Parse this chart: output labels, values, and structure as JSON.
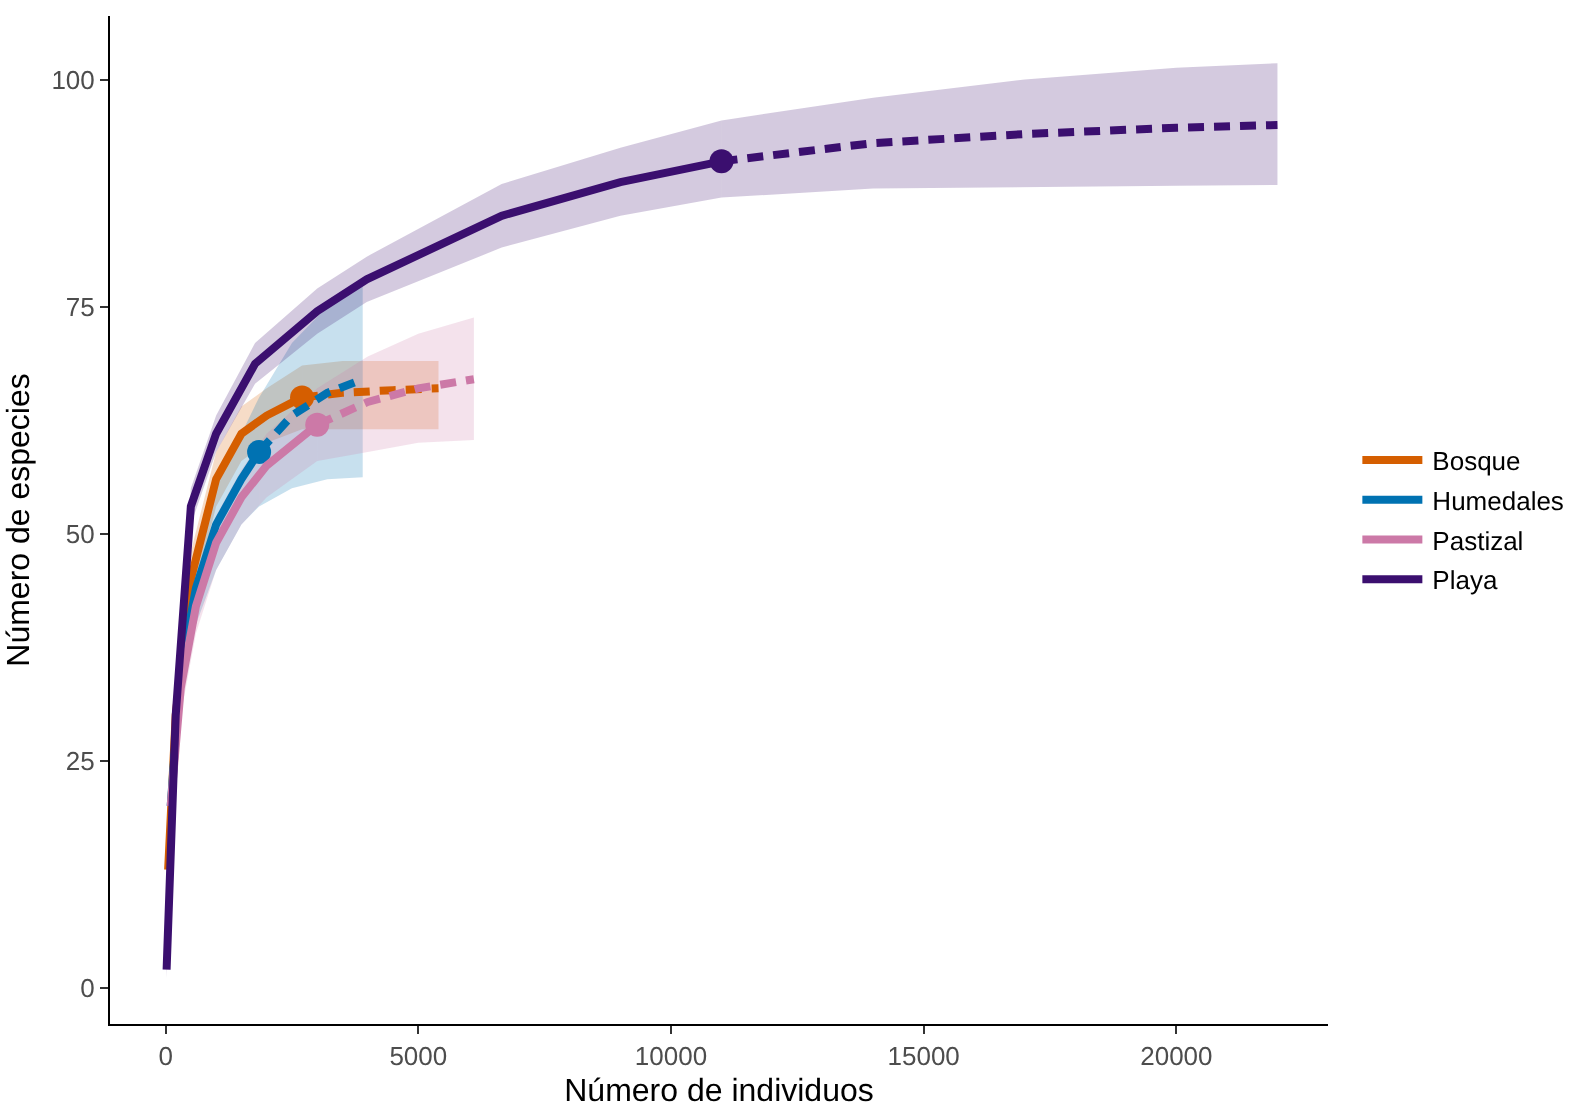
{
  "chart_data": {
    "type": "line",
    "xlabel": "Número de individuos",
    "ylabel": "Número de especies",
    "xlim": [
      -1100,
      23000
    ],
    "ylim": [
      -4,
      107
    ],
    "xticks": [
      0,
      5000,
      10000,
      15000,
      20000
    ],
    "yticks": [
      0,
      25,
      50,
      75,
      100
    ],
    "grid": false,
    "legend": "right",
    "marker": "none",
    "series": [
      {
        "name": "Bosque",
        "color": "#d55e00",
        "line_style": "solid",
        "x": [
          50,
          200,
          500,
          1000,
          1500,
          2000,
          2700
        ],
        "values": [
          13,
          30,
          45,
          56,
          61,
          63,
          65
        ],
        "lower": [
          11,
          27,
          42,
          53,
          58,
          60,
          61.5
        ],
        "upper": [
          15,
          33,
          48,
          59,
          64,
          66,
          68.5
        ]
      },
      {
        "color": "#d55e00",
        "line_style": "dashed",
        "x": [
          2700,
          3500,
          4500,
          5400
        ],
        "values": [
          65,
          65.5,
          65.8,
          66
        ],
        "lower": [
          61.5,
          61.5,
          61.5,
          61.5
        ],
        "upper": [
          68.5,
          69,
          69,
          69
        ]
      },
      {
        "type": "scatter",
        "color": "#d55e00",
        "marker": "circle",
        "x": [
          2700
        ],
        "values": [
          65
        ]
      },
      {
        "name": "Humedales",
        "color": "#0072b2",
        "line_style": "solid",
        "x": [
          100,
          300,
          600,
          1000,
          1500,
          1850
        ],
        "values": [
          20,
          35,
          44,
          51,
          56,
          59
        ],
        "lower": [
          17,
          31,
          40,
          46,
          51,
          53
        ],
        "upper": [
          23,
          39,
          48,
          56,
          61,
          65
        ]
      },
      {
        "color": "#0072b2",
        "line_style": "dashed",
        "x": [
          1850,
          2500,
          3200,
          3900
        ],
        "values": [
          59,
          63,
          65.5,
          67
        ],
        "lower": [
          53,
          55,
          56,
          56.2
        ],
        "upper": [
          65,
          71,
          75,
          77.8
        ]
      },
      {
        "type": "scatter",
        "color": "#0072b2",
        "marker": "circle",
        "x": [
          1850
        ],
        "values": [
          59
        ]
      },
      {
        "name": "Pastizal",
        "color": "#cc79a7",
        "line_style": "solid",
        "x": [
          100,
          300,
          600,
          1000,
          1500,
          2000,
          3000
        ],
        "values": [
          20,
          33,
          42,
          49,
          54,
          57.5,
          62
        ],
        "lower": [
          17,
          30,
          39,
          46,
          51,
          54,
          58
        ],
        "upper": [
          23,
          36,
          45,
          52,
          57,
          61,
          66
        ]
      },
      {
        "color": "#cc79a7",
        "line_style": "dashed",
        "x": [
          3000,
          4000,
          5000,
          6100
        ],
        "values": [
          62,
          64.5,
          66,
          67
        ],
        "lower": [
          58,
          59,
          60,
          60.3
        ],
        "upper": [
          66,
          69.5,
          72,
          73.8
        ]
      },
      {
        "type": "scatter",
        "color": "#cc79a7",
        "marker": "circle",
        "x": [
          3000
        ],
        "values": [
          62
        ]
      },
      {
        "name": "Playa",
        "color": "#3b0f6f",
        "line_style": "solid",
        "x": [
          20,
          200,
          500,
          1000,
          1770,
          3000,
          3980,
          6650,
          9000,
          11000
        ],
        "values": [
          2,
          30,
          53,
          61,
          68.7,
          74.5,
          78,
          85,
          88.7,
          91
        ],
        "lower": [
          1,
          28,
          51,
          59,
          66.5,
          72,
          75.5,
          81.5,
          85,
          87
        ],
        "upper": [
          3,
          32,
          55,
          63,
          71,
          77,
          80.5,
          88.5,
          92.5,
          95.5
        ]
      },
      {
        "color": "#3b0f6f",
        "line_style": "dashed",
        "x": [
          11000,
          14000,
          17000,
          20000,
          22000
        ],
        "values": [
          91,
          93,
          94,
          94.7,
          95
        ],
        "lower": [
          87,
          88,
          88.2,
          88.3,
          88.4
        ],
        "upper": [
          95.5,
          98,
          100,
          101.3,
          101.8
        ]
      },
      {
        "type": "scatter",
        "color": "#3b0f6f",
        "marker": "circle",
        "x": [
          11000
        ],
        "values": [
          91
        ]
      }
    ]
  }
}
